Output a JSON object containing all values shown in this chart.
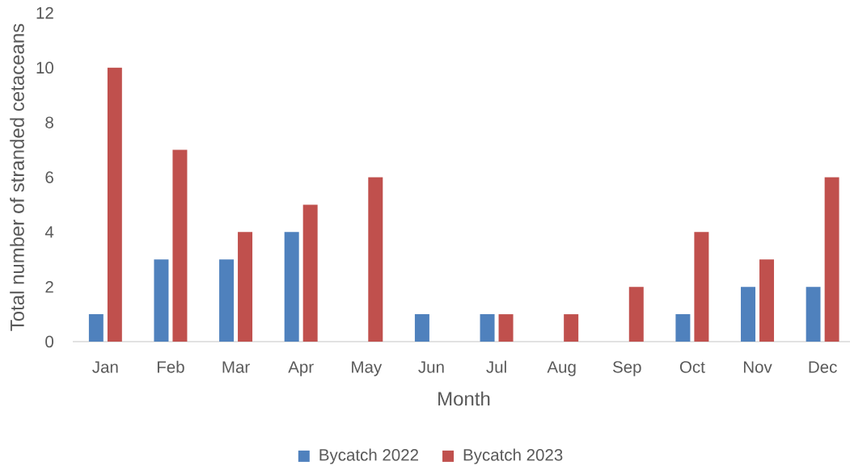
{
  "chart_data": {
    "type": "bar",
    "xlabel": "Month",
    "ylabel": "Total number of stranded cetaceans",
    "categories": [
      "Jan",
      "Feb",
      "Mar",
      "Apr",
      "May",
      "Jun",
      "Jul",
      "Aug",
      "Sep",
      "Oct",
      "Nov",
      "Dec"
    ],
    "series": [
      {
        "name": "Bycatch 2022",
        "color": "#4f81bd",
        "values": [
          1,
          3,
          3,
          4,
          0,
          1,
          1,
          0,
          0,
          1,
          2,
          2
        ]
      },
      {
        "name": "Bycatch 2023",
        "color": "#c0504d",
        "values": [
          10,
          7,
          4,
          5,
          6,
          0,
          1,
          1,
          2,
          4,
          3,
          6
        ]
      }
    ],
    "ylim": [
      0,
      12
    ],
    "yticks": [
      0,
      2,
      4,
      6,
      8,
      10,
      12
    ],
    "legend": "bottom"
  }
}
